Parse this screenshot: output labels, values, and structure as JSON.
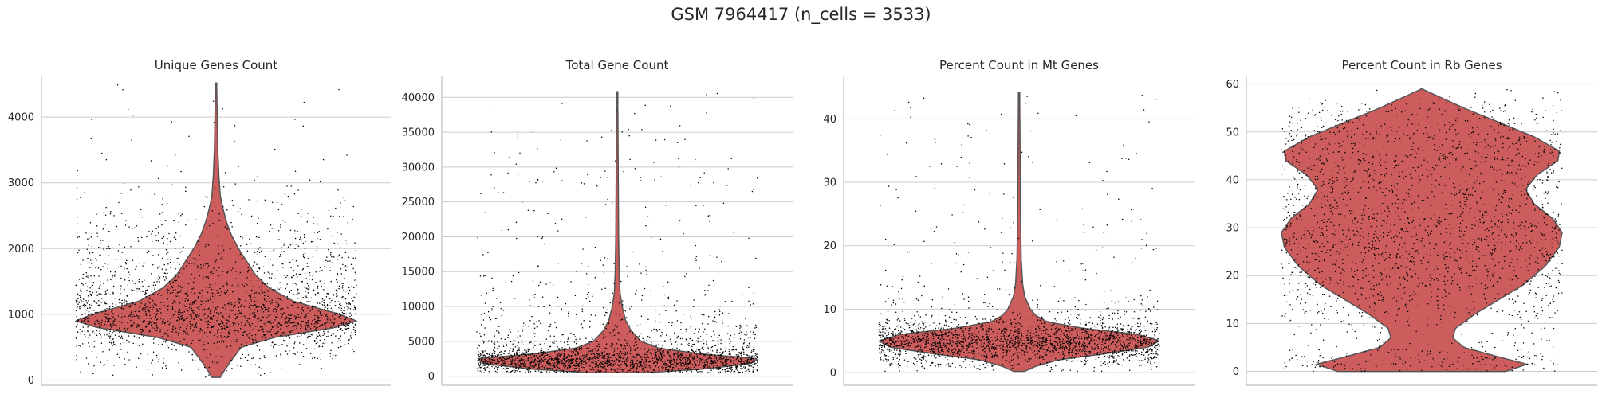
{
  "figure": {
    "suptitle": "GSM 7964417 (n_cells = 3533)",
    "violin_color": "#cd5c5c",
    "edge_color": "#555555",
    "point_color": "#000000",
    "grid_color": "#cccccc"
  },
  "chart_data": [
    {
      "type": "violin",
      "title": "Unique Genes Count",
      "xlabel": "",
      "ylabel": "",
      "ylim": [
        -80,
        4620
      ],
      "yticks": [
        0,
        1000,
        2000,
        3000,
        4000
      ],
      "tick_labels": [
        "0",
        "1000",
        "2000",
        "3000",
        "4000"
      ],
      "grid": true,
      "n_points": 3533,
      "range": [
        40,
        4520
      ],
      "profile": [
        [
          40,
          0.03
        ],
        [
          150,
          0.06
        ],
        [
          300,
          0.11
        ],
        [
          500,
          0.18
        ],
        [
          650,
          0.42
        ],
        [
          800,
          0.85
        ],
        [
          900,
          1.0
        ],
        [
          1000,
          0.88
        ],
        [
          1200,
          0.55
        ],
        [
          1400,
          0.38
        ],
        [
          1600,
          0.28
        ],
        [
          1800,
          0.22
        ],
        [
          2000,
          0.16
        ],
        [
          2200,
          0.11
        ],
        [
          2400,
          0.075
        ],
        [
          2600,
          0.05
        ],
        [
          2800,
          0.03
        ],
        [
          3100,
          0.02
        ],
        [
          3500,
          0.012
        ],
        [
          4000,
          0.008
        ],
        [
          4520,
          0.004
        ]
      ]
    },
    {
      "type": "violin",
      "title": "Total Gene Count",
      "xlabel": "",
      "ylabel": "",
      "ylim": [
        -1300,
        43000
      ],
      "yticks": [
        0,
        5000,
        10000,
        15000,
        20000,
        25000,
        30000,
        35000,
        40000
      ],
      "tick_labels": [
        "0",
        "5000",
        "10000",
        "15000",
        "20000",
        "25000",
        "30000",
        "35000",
        "40000"
      ],
      "grid": true,
      "n_points": 3533,
      "range": [
        500,
        40800
      ],
      "profile": [
        [
          500,
          0.2
        ],
        [
          1000,
          0.6
        ],
        [
          1800,
          0.95
        ],
        [
          2500,
          1.0
        ],
        [
          3200,
          0.6
        ],
        [
          4000,
          0.3
        ],
        [
          5000,
          0.17
        ],
        [
          6500,
          0.1
        ],
        [
          8000,
          0.06
        ],
        [
          10000,
          0.035
        ],
        [
          12000,
          0.02
        ],
        [
          15000,
          0.014
        ],
        [
          20000,
          0.01
        ],
        [
          30000,
          0.007
        ],
        [
          40800,
          0.004
        ]
      ]
    },
    {
      "type": "violin",
      "title": "Percent Count in Mt Genes",
      "xlabel": "",
      "ylabel": "",
      "ylim": [
        -2,
        46.7
      ],
      "yticks": [
        0,
        10,
        20,
        30,
        40
      ],
      "tick_labels": [
        "0",
        "10",
        "20",
        "30",
        "40"
      ],
      "grid": true,
      "n_points": 3533,
      "range": [
        0.2,
        44.2
      ],
      "profile": [
        [
          0.2,
          0.04
        ],
        [
          1,
          0.12
        ],
        [
          2,
          0.28
        ],
        [
          3,
          0.62
        ],
        [
          4,
          0.92
        ],
        [
          5,
          1.0
        ],
        [
          6,
          0.85
        ],
        [
          7,
          0.45
        ],
        [
          8,
          0.2
        ],
        [
          9,
          0.12
        ],
        [
          10,
          0.08
        ],
        [
          12,
          0.04
        ],
        [
          14,
          0.025
        ],
        [
          18,
          0.015
        ],
        [
          25,
          0.01
        ],
        [
          35,
          0.007
        ],
        [
          44.2,
          0.004
        ]
      ]
    },
    {
      "type": "violin",
      "title": "Percent Count in Rb Genes",
      "xlabel": "",
      "ylabel": "",
      "ylim": [
        -2.9,
        61.6
      ],
      "yticks": [
        0,
        10,
        20,
        30,
        40,
        50,
        60
      ],
      "tick_labels": [
        "0",
        "10",
        "20",
        "30",
        "40",
        "50",
        "60"
      ],
      "grid": true,
      "n_points": 3533,
      "range": [
        0,
        59
      ],
      "profile": [
        [
          0,
          0.6
        ],
        [
          1.5,
          0.75
        ],
        [
          3,
          0.55
        ],
        [
          5,
          0.3
        ],
        [
          7,
          0.22
        ],
        [
          9,
          0.24
        ],
        [
          12,
          0.38
        ],
        [
          15,
          0.55
        ],
        [
          18,
          0.72
        ],
        [
          22,
          0.88
        ],
        [
          26,
          0.98
        ],
        [
          29,
          1.0
        ],
        [
          32,
          0.93
        ],
        [
          35,
          0.8
        ],
        [
          38,
          0.74
        ],
        [
          41,
          0.82
        ],
        [
          44,
          0.97
        ],
        [
          46,
          0.98
        ],
        [
          49,
          0.8
        ],
        [
          52,
          0.55
        ],
        [
          55,
          0.3
        ],
        [
          57,
          0.15
        ],
        [
          59,
          0.0
        ]
      ]
    }
  ]
}
